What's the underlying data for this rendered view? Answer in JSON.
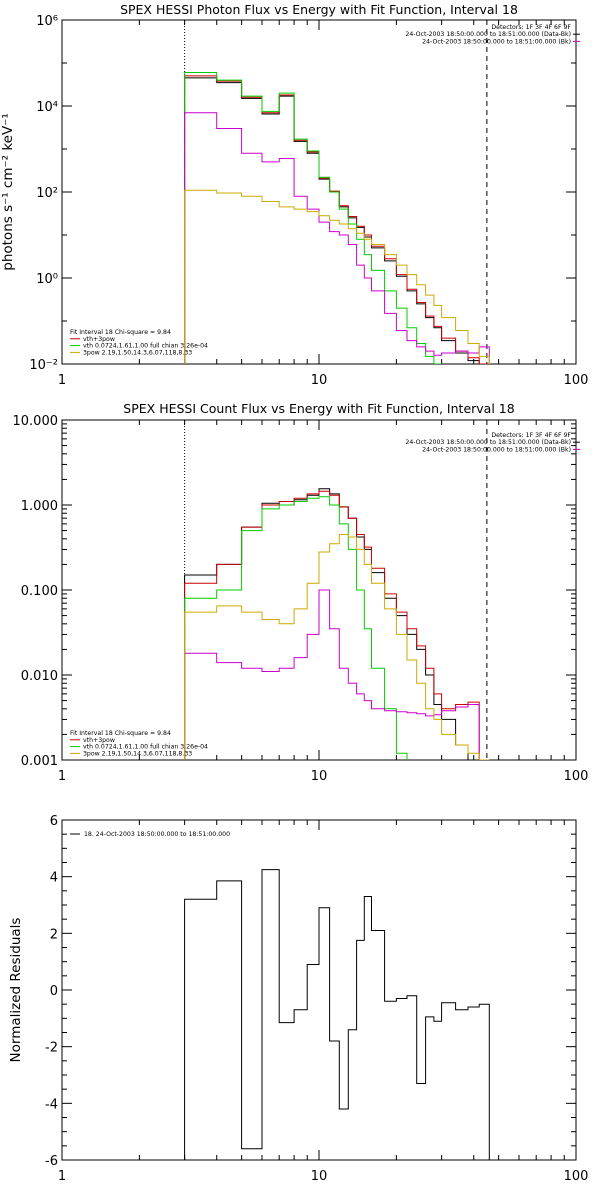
{
  "chart_data": [
    {
      "type": "line",
      "title": "SPEX HESSI Photon Flux vs Energy with Fit Function, Interval 18",
      "ylabel": "photons s⁻¹ cm⁻² keV⁻¹",
      "xscale": "log",
      "yscale": "log",
      "xlim": [
        1,
        100
      ],
      "ylim": [
        0.01,
        1000000
      ],
      "x_tick_labels": [
        "1",
        "10",
        "100"
      ],
      "y_ticks": [
        {
          "value": 0.01,
          "label": "10⁻²"
        },
        {
          "value": 1,
          "label": "10⁰"
        },
        {
          "value": 100,
          "label": "10²"
        },
        {
          "value": 10000,
          "label": "10⁴"
        },
        {
          "value": 1000000,
          "label": "10⁶"
        }
      ],
      "vlines": [
        {
          "x": 3.0,
          "style": "dotted"
        },
        {
          "x": 45.0,
          "style": "dashed"
        }
      ],
      "info_lines": [
        "Detectors: 1F 3F 4F 6F 9F",
        "24-Oct-2003 18:50:00.000 to 18:51:00.000 (Data-Bk)",
        "24-Oct-2003 18:50:00.000 to 18:51:00.000 (Bk)"
      ],
      "legend_lines": [
        "Fit Interval 18    Chi-square = 9.84",
        "vth+3pow",
        "vth 0.0724,1.61,1.00  full chian 3.26e-04",
        "3pow 2.19,1.50,14.3,6.07,118,8.33"
      ],
      "bin_edges": [
        3,
        4,
        5,
        6,
        7,
        8,
        9,
        10,
        11,
        12,
        13,
        14,
        15,
        16,
        18,
        20,
        22,
        24,
        26,
        28,
        30,
        34,
        38,
        42,
        46,
        50
      ],
      "series": [
        {
          "name": "",
          "color": "#000000",
          "values": [
            45000,
            35000,
            15000,
            6500,
            17000,
            1500,
            800,
            200,
            100,
            45,
            25,
            15,
            9,
            5,
            2.5,
            1.1,
            0.5,
            0.25,
            0.12,
            0.07,
            0.035,
            0.018,
            0.012,
            0.008,
            null
          ]
        },
        {
          "name": "",
          "color": "#cc0000",
          "values": [
            50000,
            38000,
            16000,
            7000,
            18000,
            1600,
            850,
            210,
            105,
            48,
            27,
            16,
            10,
            5.5,
            2.8,
            1.2,
            0.55,
            0.27,
            0.13,
            0.075,
            0.04,
            0.02,
            0.014,
            0.009,
            null
          ]
        },
        {
          "name": "",
          "color": "#00cc00",
          "values": [
            60000,
            40000,
            17000,
            7500,
            20000,
            1700,
            900,
            220,
            100,
            40,
            18,
            8,
            3.5,
            1.5,
            0.5,
            0.2,
            0.07,
            0.03,
            0.015,
            0.008,
            null,
            null,
            null,
            null,
            null
          ]
        },
        {
          "name": "",
          "color": "#cc00cc",
          "values": [
            7000,
            3000,
            800,
            500,
            600,
            80,
            40,
            20,
            12,
            10,
            6,
            2,
            1,
            0.5,
            0.15,
            0.06,
            0.035,
            0.025,
            0.02,
            0.016,
            0.018,
            0.02,
            0.018,
            0.025,
            null
          ]
        },
        {
          "name": "",
          "color": "#ccaa00",
          "values": [
            110,
            95,
            80,
            60,
            45,
            40,
            35,
            28,
            22,
            18,
            14,
            11,
            8,
            6,
            3.5,
            2,
            1.2,
            0.7,
            0.4,
            0.23,
            0.12,
            0.06,
            0.03,
            0.015,
            null
          ]
        }
      ]
    },
    {
      "type": "line",
      "title": "SPEX HESSI Count Flux vs Energy with Fit Function, Interval 18",
      "ylabel": "",
      "xscale": "log",
      "yscale": "log",
      "xlim": [
        1,
        100
      ],
      "ylim": [
        0.001,
        10
      ],
      "x_tick_labels": [
        "1",
        "10",
        "100"
      ],
      "y_ticks": [
        {
          "value": 0.001,
          "label": "0.001"
        },
        {
          "value": 0.01,
          "label": "0.010"
        },
        {
          "value": 0.1,
          "label": "0.100"
        },
        {
          "value": 1,
          "label": "1.000"
        },
        {
          "value": 10,
          "label": "10.000"
        }
      ],
      "vlines": [
        {
          "x": 3.0,
          "style": "dotted"
        },
        {
          "x": 45.0,
          "style": "dashed"
        }
      ],
      "info_lines": [
        "Detectors: 1F 3F 4F 6F 9F",
        "24-Oct-2003 18:50:00.000 to 18:51:00.000 (Data-Bk)",
        "24-Oct-2003 18:50:00.000 to 18:51:00.000 (Bk)"
      ],
      "legend_lines": [
        "Fit Interval 18    Chi-square = 9.84",
        "vth+3pow",
        "vth 0.0724,1.61,1.00  full chian 3.26e-04",
        "3pow 2.19,1.50,14.3,6.07,118,8.33"
      ],
      "bin_edges": [
        3,
        4,
        5,
        6,
        7,
        8,
        9,
        10,
        11,
        12,
        13,
        14,
        15,
        16,
        18,
        20,
        22,
        24,
        26,
        28,
        30,
        34,
        38,
        42,
        46,
        50
      ],
      "series": [
        {
          "name": "",
          "color": "#000000",
          "values": [
            0.15,
            0.2,
            0.55,
            1.05,
            1.0,
            1.15,
            1.3,
            1.55,
            1.35,
            0.95,
            0.7,
            0.42,
            0.3,
            0.16,
            0.08,
            0.05,
            0.03,
            0.02,
            0.01,
            0.0045,
            0.003,
            0.0015,
            0.001,
            null,
            null
          ]
        },
        {
          "name": "",
          "color": "#cc0000",
          "values": [
            0.12,
            0.2,
            0.55,
            1.0,
            1.1,
            1.2,
            1.35,
            1.45,
            1.3,
            0.95,
            0.7,
            0.45,
            0.32,
            0.18,
            0.09,
            0.055,
            0.035,
            0.022,
            0.012,
            0.006,
            0.004,
            0.0045,
            0.0048,
            null,
            null
          ]
        },
        {
          "name": "",
          "color": "#00cc00",
          "values": [
            0.08,
            0.1,
            0.5,
            0.9,
            1.0,
            1.1,
            1.2,
            1.25,
            1.0,
            0.6,
            0.3,
            0.1,
            0.035,
            0.012,
            0.004,
            0.0012,
            null,
            null,
            null,
            null,
            null,
            null,
            null,
            null,
            null
          ]
        },
        {
          "name": "",
          "color": "#cc00cc",
          "values": [
            0.018,
            0.014,
            0.012,
            0.011,
            0.012,
            0.016,
            0.03,
            0.1,
            0.035,
            0.012,
            0.008,
            0.006,
            0.005,
            0.004,
            0.0038,
            0.0037,
            0.0036,
            0.0035,
            0.0033,
            0.0034,
            0.0038,
            0.0042,
            0.0045,
            null,
            null
          ]
        },
        {
          "name": "",
          "color": "#ccaa00",
          "values": [
            0.055,
            0.065,
            0.055,
            0.045,
            0.04,
            0.06,
            0.12,
            0.28,
            0.35,
            0.45,
            0.42,
            0.3,
            0.2,
            0.12,
            0.06,
            0.03,
            0.015,
            0.008,
            0.004,
            0.003,
            0.002,
            0.0015,
            0.0012,
            0.001,
            null
          ]
        }
      ]
    },
    {
      "type": "line",
      "title": "",
      "ylabel": "Normalized Residuals",
      "xscale": "log",
      "yscale": "linear",
      "xlim": [
        1,
        100
      ],
      "ylim": [
        -6,
        6
      ],
      "x_tick_labels": [
        "1",
        "10",
        "100"
      ],
      "y_ticks": [
        {
          "value": -6,
          "label": "-6"
        },
        {
          "value": -4,
          "label": "-4"
        },
        {
          "value": -2,
          "label": "-2"
        },
        {
          "value": 0,
          "label": "0"
        },
        {
          "value": 2,
          "label": "2"
        },
        {
          "value": 4,
          "label": "4"
        },
        {
          "value": 6,
          "label": "6"
        }
      ],
      "legend_lines": [
        "18. 24-Oct-2003 18:50:00.000 to 18:51:00.000"
      ],
      "bin_edges": [
        3,
        4,
        5,
        6,
        7,
        8,
        9,
        10,
        11,
        12,
        13,
        14,
        15,
        16,
        18,
        20,
        22,
        24,
        26,
        28,
        30,
        34,
        38,
        42,
        46
      ],
      "series": [
        {
          "name": "",
          "color": "#000000",
          "values": [
            3.2,
            3.85,
            -5.6,
            4.25,
            -1.15,
            -0.7,
            0.9,
            2.9,
            -1.8,
            -4.2,
            -1.4,
            1.75,
            3.3,
            2.1,
            -0.4,
            -0.3,
            -0.2,
            -3.3,
            -0.95,
            -1.1,
            -0.45,
            -0.7,
            -0.6,
            -0.5
          ]
        }
      ]
    }
  ]
}
